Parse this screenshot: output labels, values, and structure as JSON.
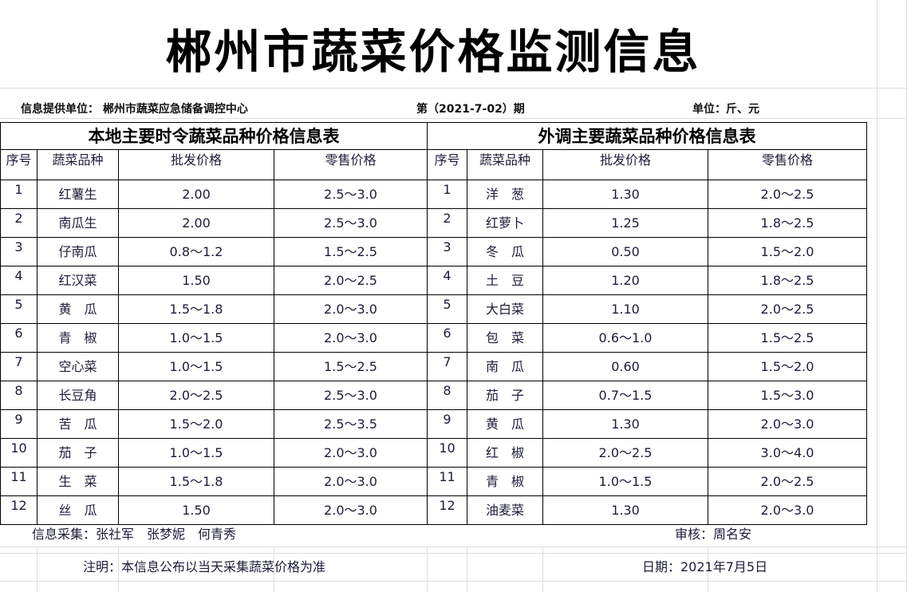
{
  "title": "郴州市蔬菜价格监测信息",
  "info": {
    "provider": "信息提供单位：  郴州市蔬菜应急储备调控中心",
    "issue": "第（2021-7-02）期",
    "unit": "单位：斤、元"
  },
  "local": {
    "title": "本地主要时令蔬菜品种价格信息表",
    "headers": [
      "序号",
      "蔬菜品种",
      "批发价格",
      "零售价格"
    ],
    "rows": [
      [
        "1",
        "红薯生",
        "2.00",
        "2.5～3.0"
      ],
      [
        "2",
        "南瓜生",
        "2.00",
        "2.5～3.0"
      ],
      [
        "3",
        "仔南瓜",
        "0.8～1.2",
        "1.5～2.5"
      ],
      [
        "4",
        "红汉菜",
        "1.50",
        "2.0～2.5"
      ],
      [
        "5",
        "黄　瓜",
        "1.5～1.8",
        "2.0～3.0"
      ],
      [
        "6",
        "青　椒",
        "1.0～1.5",
        "2.0～3.0"
      ],
      [
        "7",
        "空心菜",
        "1.0～1.5",
        "1.5～2.5"
      ],
      [
        "8",
        "长豆角",
        "2.0～2.5",
        "2.5～3.0"
      ],
      [
        "9",
        "苦　瓜",
        "1.5～2.0",
        "2.5～3.5"
      ],
      [
        "10",
        "茄　子",
        "1.0～1.5",
        "2.0～3.0"
      ],
      [
        "11",
        "生　菜",
        "1.5～1.8",
        "2.0～3.0"
      ],
      [
        "12",
        "丝　瓜",
        "1.50",
        "2.0～3.0"
      ]
    ]
  },
  "external": {
    "title": "外调主要蔬菜品种价格信息表",
    "headers": [
      "序号",
      "蔬菜品种",
      "批发价格",
      "零售价格"
    ],
    "rows": [
      [
        "1",
        "洋　葱",
        "1.30",
        "2.0～2.5"
      ],
      [
        "2",
        "红萝卜",
        "1.25",
        "1.8～2.5"
      ],
      [
        "3",
        "冬　瓜",
        "0.50",
        "1.5～2.0"
      ],
      [
        "4",
        "土　豆",
        "1.20",
        "1.8～2.5"
      ],
      [
        "5",
        "大白菜",
        "1.10",
        "2.0～2.5"
      ],
      [
        "6",
        "包　菜",
        "0.6～1.0",
        "1.5～2.5"
      ],
      [
        "7",
        "南　瓜",
        "0.60",
        "1.5～2.0"
      ],
      [
        "8",
        "茄　子",
        "0.7～1.5",
        "1.5～3.0"
      ],
      [
        "9",
        "黄　瓜",
        "1.30",
        "2.0～3.0"
      ],
      [
        "10",
        "红　椒",
        "2.0～2.5",
        "3.0～4.0"
      ],
      [
        "11",
        "青　椒",
        "1.0～1.5",
        "2.0～2.5"
      ],
      [
        "12",
        "油麦菜",
        "1.30",
        "2.0～3.0"
      ]
    ]
  },
  "footer": {
    "collectors": "信息采集：张社军　张梦妮　何青秀",
    "reviewer": "审核：周名安",
    "note": "注明：本信息公布以当天采集蔬菜价格为准",
    "date": "日期：2021年7月5日"
  }
}
